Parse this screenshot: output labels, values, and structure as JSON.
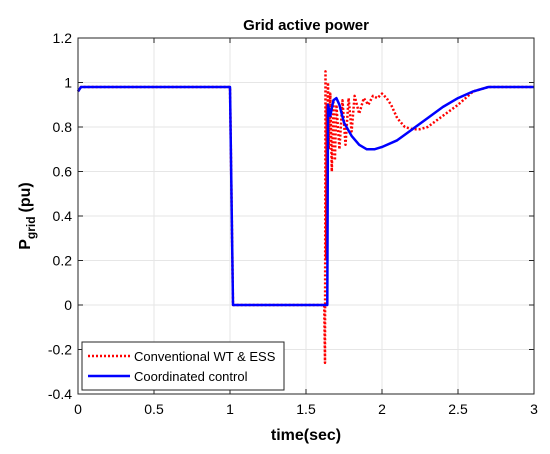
{
  "chart_data": {
    "type": "line",
    "title": "Grid active power",
    "xlabel": "time(sec)",
    "ylabel_main": "P",
    "ylabel_sub": "grid",
    "ylabel_unit": "(pu)",
    "xlim": [
      0,
      3
    ],
    "ylim": [
      -0.4,
      1.2
    ],
    "xticks": [
      0,
      0.5,
      1,
      1.5,
      2,
      2.5,
      3
    ],
    "xtick_labels": [
      "0",
      "0.5",
      "1",
      "1.5",
      "2",
      "2.5",
      "3"
    ],
    "yticks": [
      -0.4,
      -0.2,
      0,
      0.2,
      0.4,
      0.6,
      0.8,
      1,
      1.2
    ],
    "ytick_labels": [
      "-0.4",
      "-0.2",
      "0",
      "0.2",
      "0.4",
      "0.6",
      "0.8",
      "1",
      "1.2"
    ],
    "grid": true,
    "legend_position": "bottom-left",
    "series": [
      {
        "name": "Conventional WT & ESS",
        "color": "#ff0000",
        "style": "dotted",
        "x": [
          0,
          0.02,
          1.0,
          1.02,
          1.62,
          1.625,
          1.628,
          1.632,
          1.636,
          1.64,
          1.645,
          1.65,
          1.66,
          1.67,
          1.68,
          1.69,
          1.7,
          1.72,
          1.74,
          1.76,
          1.78,
          1.8,
          1.82,
          1.85,
          1.88,
          1.91,
          1.94,
          1.97,
          2.0,
          2.03,
          2.06,
          2.1,
          2.15,
          2.2,
          2.25,
          2.3,
          2.4,
          2.5,
          2.6,
          2.7,
          2.8,
          2.9,
          3.0
        ],
        "y": [
          0.96,
          0.98,
          0.98,
          0.0,
          0.0,
          -0.26,
          1.05,
          0.2,
          0.9,
          0.65,
          1.0,
          0.7,
          0.95,
          0.6,
          0.92,
          0.65,
          0.9,
          0.7,
          0.92,
          0.72,
          0.93,
          0.78,
          0.94,
          0.86,
          0.93,
          0.9,
          0.94,
          0.93,
          0.95,
          0.93,
          0.9,
          0.84,
          0.8,
          0.79,
          0.79,
          0.8,
          0.85,
          0.9,
          0.96,
          0.98,
          0.98,
          0.98,
          0.98
        ]
      },
      {
        "name": "Coordinated control",
        "color": "#0000ff",
        "style": "solid",
        "x": [
          0,
          0.02,
          1.0,
          1.02,
          1.64,
          1.645,
          1.66,
          1.68,
          1.7,
          1.72,
          1.75,
          1.8,
          1.85,
          1.9,
          1.95,
          2.0,
          2.1,
          2.2,
          2.3,
          2.4,
          2.5,
          2.6,
          2.7,
          2.8,
          2.9,
          3.0
        ],
        "y": [
          0.96,
          0.98,
          0.98,
          0.0,
          0.0,
          0.9,
          0.85,
          0.92,
          0.93,
          0.9,
          0.82,
          0.76,
          0.72,
          0.7,
          0.7,
          0.71,
          0.74,
          0.79,
          0.84,
          0.89,
          0.93,
          0.96,
          0.98,
          0.98,
          0.98,
          0.98
        ]
      }
    ]
  }
}
